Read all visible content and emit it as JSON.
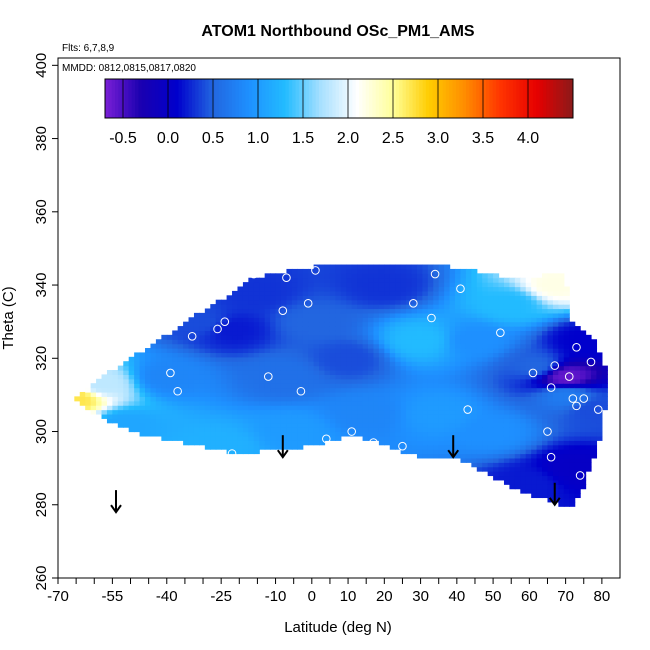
{
  "chart_data": {
    "type": "heatmap",
    "title": "ATOM1 Northbound OSc_PM1_AMS",
    "annotations": {
      "flights": "Flts: 6,7,8,9",
      "dates": "MMDD: 0812,0815,0817,0820"
    },
    "xlabel": "Latitude (deg N)",
    "ylabel": "Theta (C)",
    "xlim": [
      -70,
      85
    ],
    "ylim": [
      260,
      402
    ],
    "x_ticks": [
      -70,
      -55,
      -40,
      -25,
      -10,
      0,
      10,
      20,
      30,
      40,
      50,
      60,
      70,
      80
    ],
    "y_ticks": [
      260,
      280,
      300,
      320,
      340,
      360,
      380,
      400
    ],
    "colorbar": {
      "range": [
        -0.7,
        4.5
      ],
      "ticks": [
        -0.5,
        0.0,
        0.5,
        1.0,
        1.5,
        2.0,
        2.5,
        3.0,
        3.5,
        4.0
      ],
      "tick_labels": [
        "-0.5",
        "0.0",
        "0.5",
        "1.0",
        "1.5",
        "2.0",
        "2.5",
        "3.0",
        "3.5",
        "4.0"
      ],
      "colors": [
        "#7a1fd6",
        "#1a00b0",
        "#0000cc",
        "#2266e0",
        "#1e90ff",
        "#22bbff",
        "#a8e0ff",
        "#ffffff",
        "#ffff99",
        "#ffcc00",
        "#ff8c00",
        "#ff3300",
        "#e60000",
        "#8b1a1a"
      ]
    },
    "field_outline": [
      [
        -65,
        309
      ],
      [
        -58,
        315
      ],
      [
        -50,
        320
      ],
      [
        -42,
        325
      ],
      [
        -35,
        330
      ],
      [
        -25,
        336
      ],
      [
        -18,
        341
      ],
      [
        -12,
        343
      ],
      [
        0,
        345
      ],
      [
        15,
        346
      ],
      [
        30,
        346
      ],
      [
        45,
        344
      ],
      [
        55,
        342
      ],
      [
        70,
        343
      ],
      [
        71,
        330
      ],
      [
        78,
        325
      ],
      [
        82,
        315
      ],
      [
        80,
        300
      ],
      [
        75,
        285
      ],
      [
        72,
        280
      ],
      [
        68,
        280
      ],
      [
        55,
        285
      ],
      [
        40,
        293
      ],
      [
        30,
        293
      ],
      [
        15,
        298
      ],
      [
        10,
        299
      ],
      [
        0,
        296
      ],
      [
        -10,
        295
      ],
      [
        -20,
        294
      ],
      [
        -30,
        296
      ],
      [
        -40,
        298
      ],
      [
        -50,
        300
      ],
      [
        -60,
        305
      ]
    ],
    "value_points": [
      {
        "x": -65,
        "y": 309,
        "v": 2.7
      },
      {
        "x": -58,
        "y": 313,
        "v": 1.8
      },
      {
        "x": -52,
        "y": 302,
        "v": 1.1
      },
      {
        "x": -40,
        "y": 315,
        "v": 0.8
      },
      {
        "x": -30,
        "y": 330,
        "v": 0.4
      },
      {
        "x": -22,
        "y": 328,
        "v": 0.2
      },
      {
        "x": -15,
        "y": 338,
        "v": 0.3
      },
      {
        "x": -8,
        "y": 315,
        "v": 0.6
      },
      {
        "x": -5,
        "y": 300,
        "v": 1.0
      },
      {
        "x": 0,
        "y": 330,
        "v": 0.5
      },
      {
        "x": 10,
        "y": 320,
        "v": 0.4
      },
      {
        "x": 15,
        "y": 305,
        "v": 0.8
      },
      {
        "x": 20,
        "y": 340,
        "v": 0.3
      },
      {
        "x": 30,
        "y": 325,
        "v": 1.3
      },
      {
        "x": 35,
        "y": 305,
        "v": 1.0
      },
      {
        "x": 45,
        "y": 325,
        "v": 0.9
      },
      {
        "x": 50,
        "y": 300,
        "v": 0.9
      },
      {
        "x": 55,
        "y": 335,
        "v": 1.3
      },
      {
        "x": 62,
        "y": 318,
        "v": 0.5
      },
      {
        "x": 67,
        "y": 340,
        "v": 2.2
      },
      {
        "x": 70,
        "y": 310,
        "v": 0.7
      },
      {
        "x": 72,
        "y": 290,
        "v": 0.0
      },
      {
        "x": 75,
        "y": 325,
        "v": 0.1
      },
      {
        "x": 78,
        "y": 306,
        "v": 0.4
      },
      {
        "x": 70,
        "y": 315,
        "v": -0.6
      },
      {
        "x": -25,
        "y": 296,
        "v": 1.2
      },
      {
        "x": 60,
        "y": 286,
        "v": 0.2
      }
    ],
    "sample_points": [
      [
        -16,
        343
      ],
      [
        -22,
        341
      ],
      [
        1,
        344
      ],
      [
        -7,
        342
      ],
      [
        20,
        347
      ],
      [
        34,
        343
      ],
      [
        41,
        339
      ],
      [
        -26,
        328
      ],
      [
        -33,
        326
      ],
      [
        -39,
        316
      ],
      [
        -37,
        311
      ],
      [
        -24,
        330
      ],
      [
        -8,
        333
      ],
      [
        -1,
        335
      ],
      [
        28,
        335
      ],
      [
        33,
        331
      ],
      [
        52,
        327
      ],
      [
        -12,
        315
      ],
      [
        -3,
        311
      ],
      [
        61,
        316
      ],
      [
        66,
        312
      ],
      [
        67,
        318
      ],
      [
        71,
        315
      ],
      [
        72,
        309
      ],
      [
        73,
        307
      ],
      [
        75,
        309
      ],
      [
        73,
        323
      ],
      [
        77,
        319
      ],
      [
        79,
        306
      ],
      [
        43,
        306
      ],
      [
        65,
        300
      ],
      [
        66,
        293
      ],
      [
        74,
        288
      ],
      [
        -51,
        298
      ],
      [
        -22,
        294
      ],
      [
        4,
        298
      ],
      [
        11,
        300
      ],
      [
        17,
        297
      ],
      [
        25,
        296
      ]
    ],
    "flight_arrows_x": [
      -54,
      -8,
      39,
      67
    ],
    "flight_arrows_y_top": [
      284,
      299,
      299,
      286
    ]
  }
}
